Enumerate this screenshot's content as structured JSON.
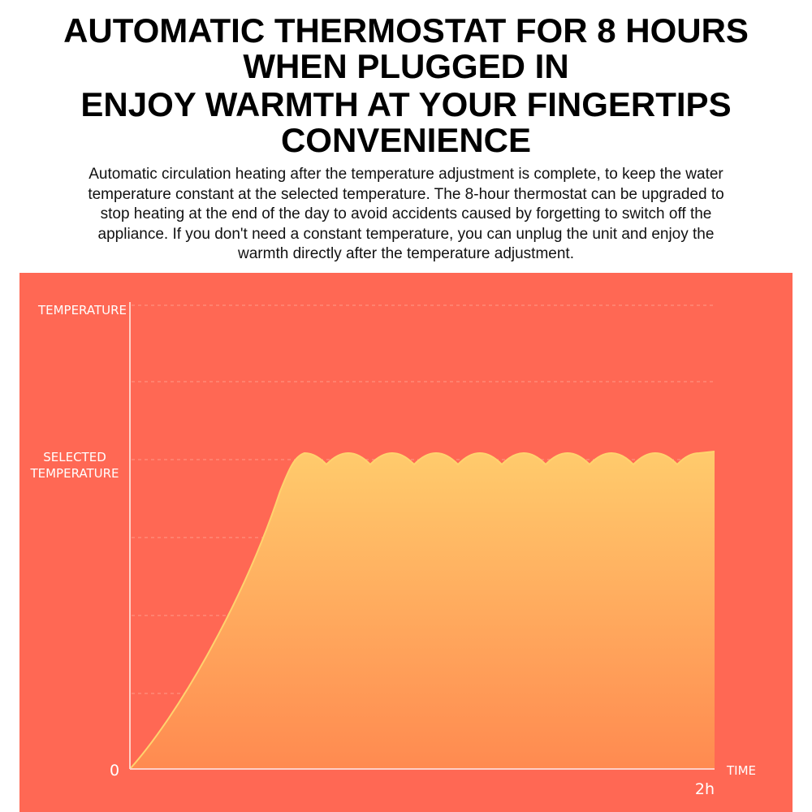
{
  "header": {
    "title_lines": [
      "AUTOMATIC THERMOSTAT FOR 8 HOURS",
      "WHEN PLUGGED IN",
      "ENJOY WARMTH AT YOUR FINGERTIPS",
      "CONVENIENCE"
    ]
  },
  "body": {
    "lines": [
      "Automatic circulation heating after the temperature adjustment is complete, to keep the water",
      "temperature constant at the selected temperature. The 8-hour thermostat can be upgraded to",
      "stop heating at the end of the day to avoid accidents caused by forgetting to switch off the",
      "appliance. If you don't need a constant temperature, you can unplug the unit and enjoy the",
      "warmth directly after the temperature adjustment."
    ]
  },
  "chart": {
    "y_axis_label": "TEMPERATURE",
    "selected_label_lines": [
      "SELECTED",
      "TEMPERATURE"
    ],
    "origin_label": "0",
    "x_axis_label": "TIME",
    "x_end_label": "2h"
  }
}
